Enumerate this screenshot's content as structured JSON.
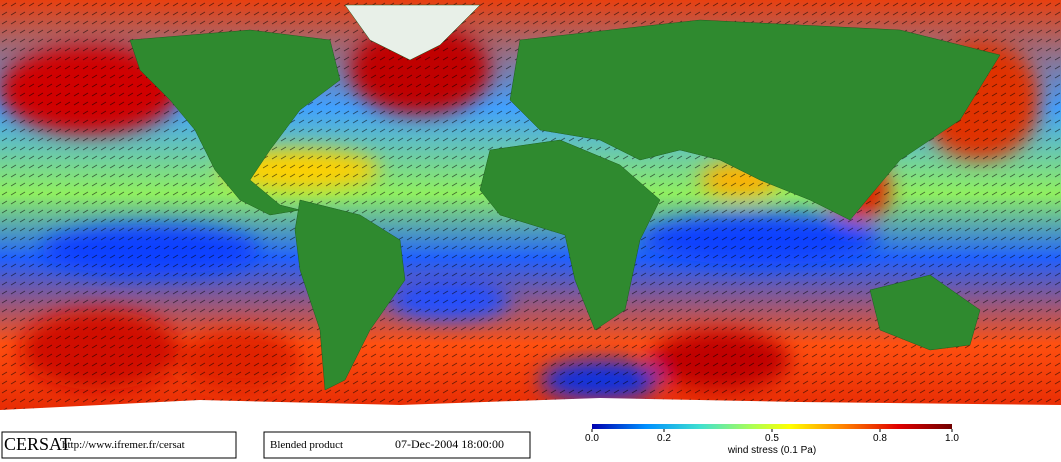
{
  "footer": {
    "brand": "CERSAT",
    "url": "http://www.ifremer.fr/cersat",
    "product": "Blended product",
    "date": "07-Dec-2004 18:00:00"
  },
  "colorbar": {
    "label": "wind stress (0.1 Pa)",
    "lim": [
      0,
      1
    ],
    "ticks": [
      {
        "value": 0,
        "label": "0.0"
      },
      0.2,
      0.5,
      0.8,
      {
        "value": 1,
        "label": "1.0"
      }
    ]
  }
}
